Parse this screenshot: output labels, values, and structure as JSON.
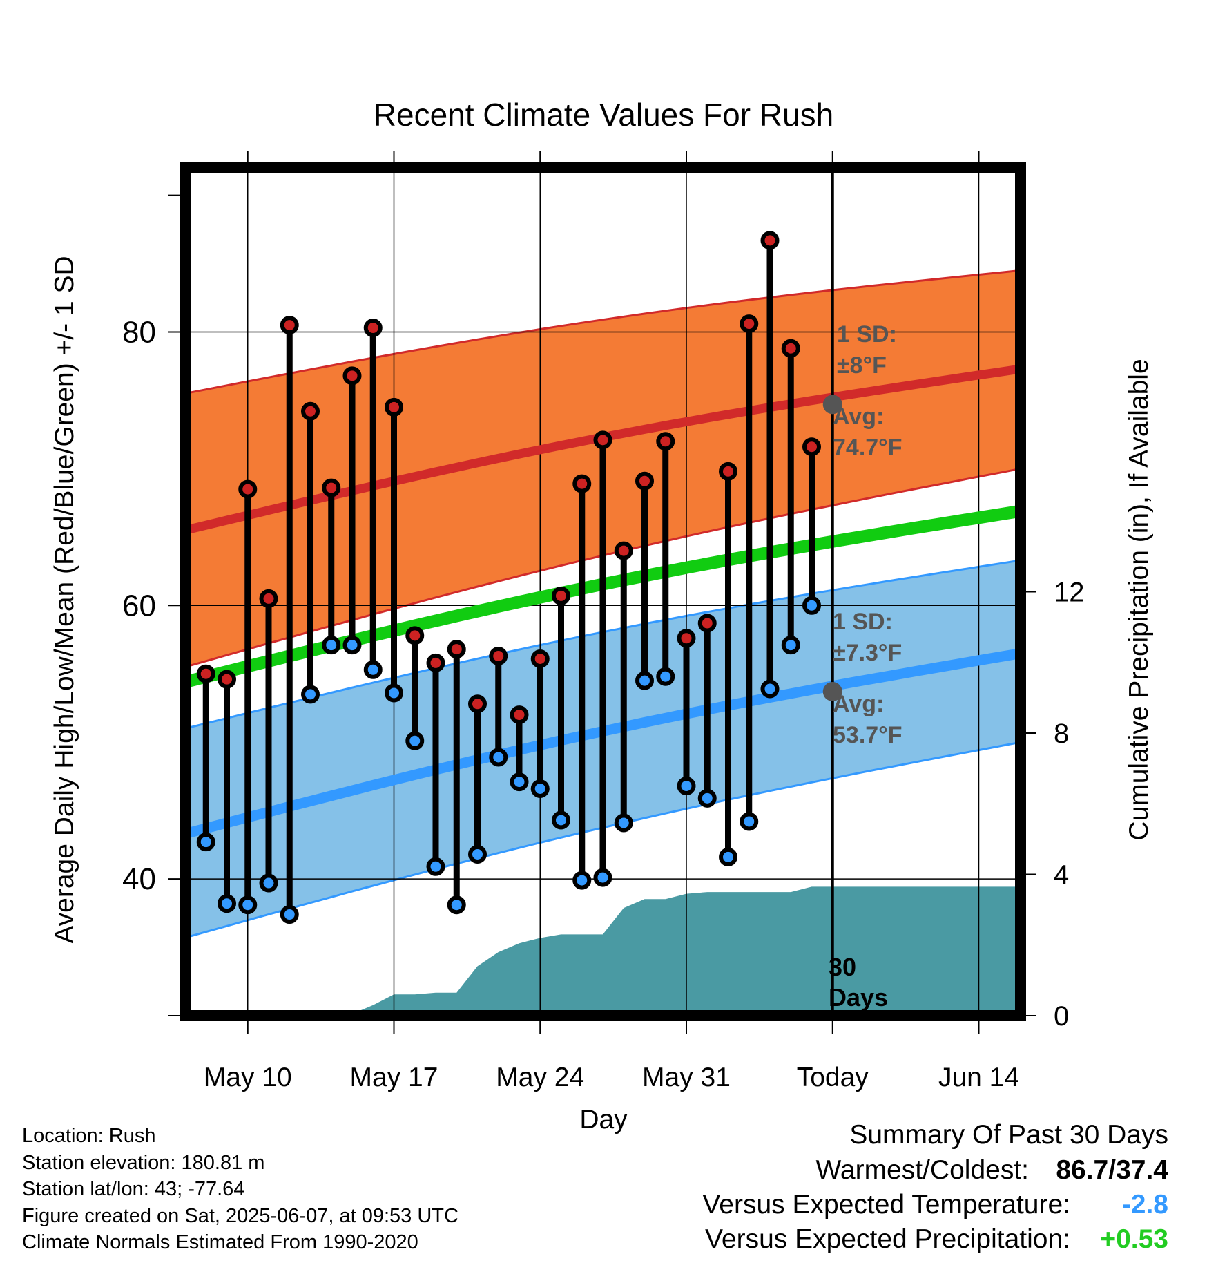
{
  "chart_data": {
    "type": "line",
    "title": "Recent Climate Values For Rush",
    "xlabel": "Day",
    "ylabel": "Average Daily High/Low/Mean (Red/Blue/Green) +/- 1 SD",
    "y2label": "Cumulative Precipitation (in), If Available",
    "ylim": [
      30,
      92
    ],
    "y2lim": [
      0,
      24
    ],
    "xlim": [
      "2025-05-07",
      "2025-06-16"
    ],
    "x_ticks": [
      {
        "date": "2025-05-10",
        "label": "May 10"
      },
      {
        "date": "2025-05-17",
        "label": "May 17"
      },
      {
        "date": "2025-05-24",
        "label": "May 24"
      },
      {
        "date": "2025-05-31",
        "label": "May 31"
      },
      {
        "date": "2025-06-07",
        "label": "Today"
      },
      {
        "date": "2025-06-14",
        "label": "Jun 14"
      }
    ],
    "y_ticks": [
      40,
      60,
      80
    ],
    "y2_ticks": [
      0,
      4,
      8,
      12
    ],
    "grid": true,
    "today": "2025-06-07",
    "today_label": [
      "30",
      "Days"
    ],
    "dates": [
      "2025-05-08",
      "2025-05-09",
      "2025-05-10",
      "2025-05-11",
      "2025-05-12",
      "2025-05-13",
      "2025-05-14",
      "2025-05-15",
      "2025-05-16",
      "2025-05-17",
      "2025-05-18",
      "2025-05-19",
      "2025-05-20",
      "2025-05-21",
      "2025-05-22",
      "2025-05-23",
      "2025-05-24",
      "2025-05-25",
      "2025-05-26",
      "2025-05-27",
      "2025-05-28",
      "2025-05-29",
      "2025-05-30",
      "2025-05-31",
      "2025-06-01",
      "2025-06-02",
      "2025-06-03",
      "2025-06-04",
      "2025-06-05",
      "2025-06-06"
    ],
    "series": [
      {
        "name": "High",
        "color": "#cc2222",
        "values": [
          55.0,
          54.6,
          68.5,
          60.5,
          80.5,
          74.2,
          68.6,
          76.8,
          80.3,
          74.5,
          57.8,
          55.8,
          56.8,
          52.8,
          56.3,
          52.0,
          56.1,
          60.7,
          68.9,
          72.1,
          64.0,
          69.1,
          72.0,
          57.6,
          58.7,
          69.8,
          80.6,
          86.7,
          78.8,
          71.6
        ]
      },
      {
        "name": "Low",
        "color": "#3399ff",
        "values": [
          42.7,
          38.2,
          38.1,
          39.7,
          37.4,
          53.5,
          57.1,
          57.1,
          55.3,
          53.6,
          50.1,
          40.9,
          38.1,
          41.8,
          48.9,
          47.1,
          46.6,
          44.3,
          39.9,
          40.1,
          44.1,
          54.5,
          54.8,
          46.8,
          45.9,
          41.6,
          44.2,
          53.9,
          57.1,
          60.0
        ]
      }
    ],
    "normals": {
      "dates": [
        "2025-05-07",
        "2025-06-16"
      ],
      "high_avg": [
        65.5,
        77.3
      ],
      "high_band": [
        [
          55.5,
          75.5
        ],
        [
          70.0,
          84.5
        ]
      ],
      "low_avg": [
        43.3,
        56.5
      ],
      "low_band": [
        [
          35.7,
          51.0
        ],
        [
          50.0,
          63.3
        ]
      ],
      "mean_avg": [
        54.4,
        66.9
      ]
    },
    "annotations": {
      "high": {
        "sd_label": "1 SD:",
        "sd_value": "±8°F",
        "avg_label": "Avg:",
        "avg_value": "74.7°F",
        "avg": 74.7
      },
      "low": {
        "sd_label": "1 SD:",
        "sd_value": "±7.3°F",
        "avg_label": "Avg:",
        "avg_value": "53.7°F",
        "avg": 53.7
      }
    },
    "precipitation": {
      "color": "#4a9aa3",
      "dates": [
        "2025-05-07",
        "2025-05-13",
        "2025-05-14",
        "2025-05-15",
        "2025-05-16",
        "2025-05-17",
        "2025-05-18",
        "2025-05-19",
        "2025-05-20",
        "2025-05-21",
        "2025-05-22",
        "2025-05-23",
        "2025-05-24",
        "2025-05-25",
        "2025-05-26",
        "2025-05-27",
        "2025-05-28",
        "2025-05-29",
        "2025-05-30",
        "2025-05-31",
        "2025-06-01",
        "2025-06-02",
        "2025-06-03",
        "2025-06-04",
        "2025-06-05",
        "2025-06-06",
        "2025-06-07",
        "2025-06-16"
      ],
      "values": [
        0,
        0,
        0,
        0.05,
        0.3,
        0.6,
        0.6,
        0.65,
        0.65,
        1.4,
        1.8,
        2.05,
        2.2,
        2.3,
        2.3,
        2.3,
        3.05,
        3.3,
        3.3,
        3.45,
        3.5,
        3.5,
        3.5,
        3.5,
        3.5,
        3.65,
        3.65,
        3.65
      ]
    }
  },
  "footer": {
    "location": "Location: Rush",
    "elevation": "Station elevation: 180.81 m",
    "latlon": "Station lat/lon: 43; -77.64",
    "created": "Figure created on Sat, 2025-06-07, at 09:53 UTC",
    "normals": "Climate Normals Estimated From 1990-2020"
  },
  "summary": {
    "title": "Summary Of Past 30 Days",
    "warmest_label": "Warmest/Coldest:",
    "warmest_value": "86.7/37.4",
    "temp_label": "Versus Expected Temperature:",
    "temp_value": "-2.8",
    "temp_color": "#3399ff",
    "precip_label": "Versus Expected Precipitation:",
    "precip_value": "+0.53",
    "precip_color": "#22cc22"
  },
  "colors": {
    "high_band": "#f47b35",
    "high_line": "#d12a2a",
    "low_band": "#85c1e8",
    "low_line": "#3399ff",
    "mean_line": "#11cc11",
    "annotation": "#555555"
  }
}
